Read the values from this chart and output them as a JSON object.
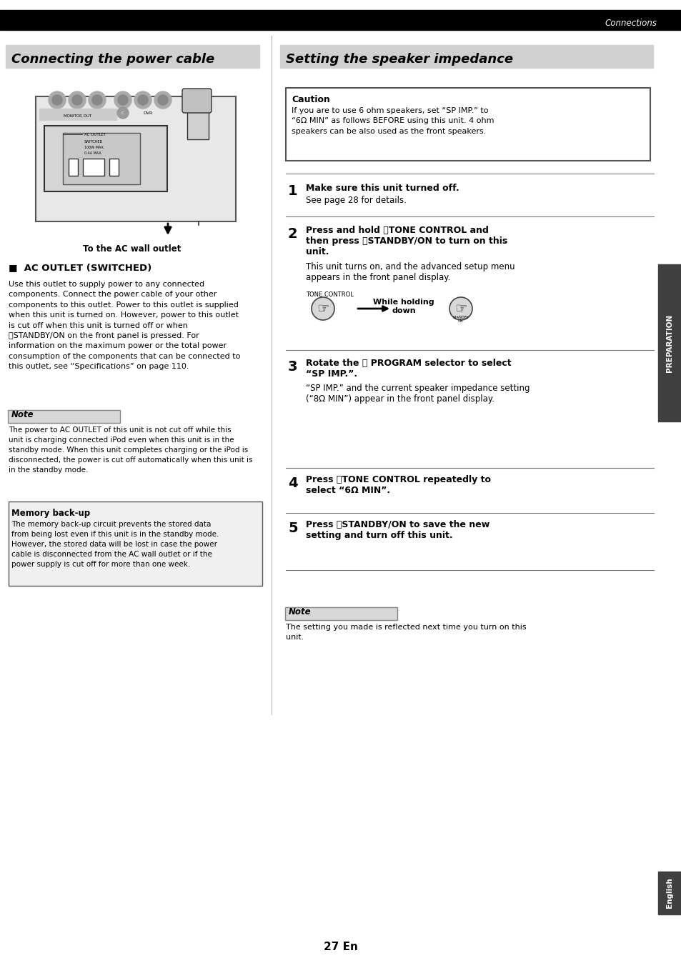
{
  "page_bg": "#ffffff",
  "top_bar_color": "#000000",
  "top_bar_text": "Connections",
  "section1_title": "Connecting the power cable",
  "section2_title": "Setting the speaker impedance",
  "section_title_bg": "#d0d0d0",
  "section_title_color": "#000000",
  "right_tab_text": "PREPARATION",
  "right_tab_bg": "#404040",
  "right_tab_color": "#ffffff",
  "bottom_right_tab_text": "English",
  "bottom_right_tab_bg": "#404040",
  "bottom_right_tab_color": "#ffffff",
  "page_number": "27 En",
  "caution_title": "Caution",
  "caution_body": "If you are to use 6 ohm speakers, set “SP IMP.” to\n“6Ω MIN” as follows BEFORE using this unit. 4 ohm\nspeakers can be also used as the front speakers.",
  "ac_outlet_title": "■  AC OUTLET (SWITCHED)",
  "ac_outlet_body": "Use this outlet to supply power to any connected\ncomponents. Connect the power cable of your other\ncomponents to this outlet. Power to this outlet is supplied\nwhen this unit is turned on. However, power to this outlet\nis cut off when this unit is turned off or when\nⓊSTANDBY/ON on the front panel is pressed. For\ninformation on the maximum power or the total power\nconsumption of the components that can be connected to\nthis outlet, see “Specifications” on page 110.",
  "note_label": "Note",
  "note_body_left": "The power to AC OUTLET of this unit is not cut off while this\nunit is charging connected iPod even when this unit is in the\nstandby mode. When this unit completes charging or the iPod is\ndisconnected, the power is cut off automatically when this unit is\nin the standby mode.",
  "memory_title": "Memory back-up",
  "memory_body": "The memory back-up circuit prevents the stored data\nfrom being lost even if this unit is in the standby mode.\nHowever, the stored data will be lost in case the power\ncable is disconnected from the AC wall outlet or if the\npower supply is cut off for more than one week.",
  "ac_wall_label": "To the AC wall outlet",
  "step1_num": "1",
  "step1_bold": "Make sure this unit turned off.",
  "step1_body": "See page 28 for details.",
  "step2_num": "2",
  "step2_bold": "Press and hold ⒹTONE CONTROL and\nthen press ⒸSTANDBY/ON to turn on this\nunit.",
  "step2_body": "This unit turns on, and the advanced setup menu\nappears in the front panel display.",
  "tone_control_label": "TONE CONTROL",
  "while_holding_label": "While holding\ndown",
  "step3_num": "3",
  "step3_bold": "Rotate the Ⓔ PROGRAM selector to select\n“SP IMP.”.",
  "step3_body": "“SP IMP.” and the current speaker impedance setting\n(“8Ω MIN”) appear in the front panel display.",
  "step4_num": "4",
  "step4_bold": "Press ⒹTONE CONTROL repeatedly to\nselect “6Ω MIN”.",
  "step5_num": "5",
  "step5_bold": "Press ⒸSTANDBY/ON to save the new\nsetting and turn off this unit.",
  "note2_body": "The setting you made is reflected next time you turn on this\nunit."
}
